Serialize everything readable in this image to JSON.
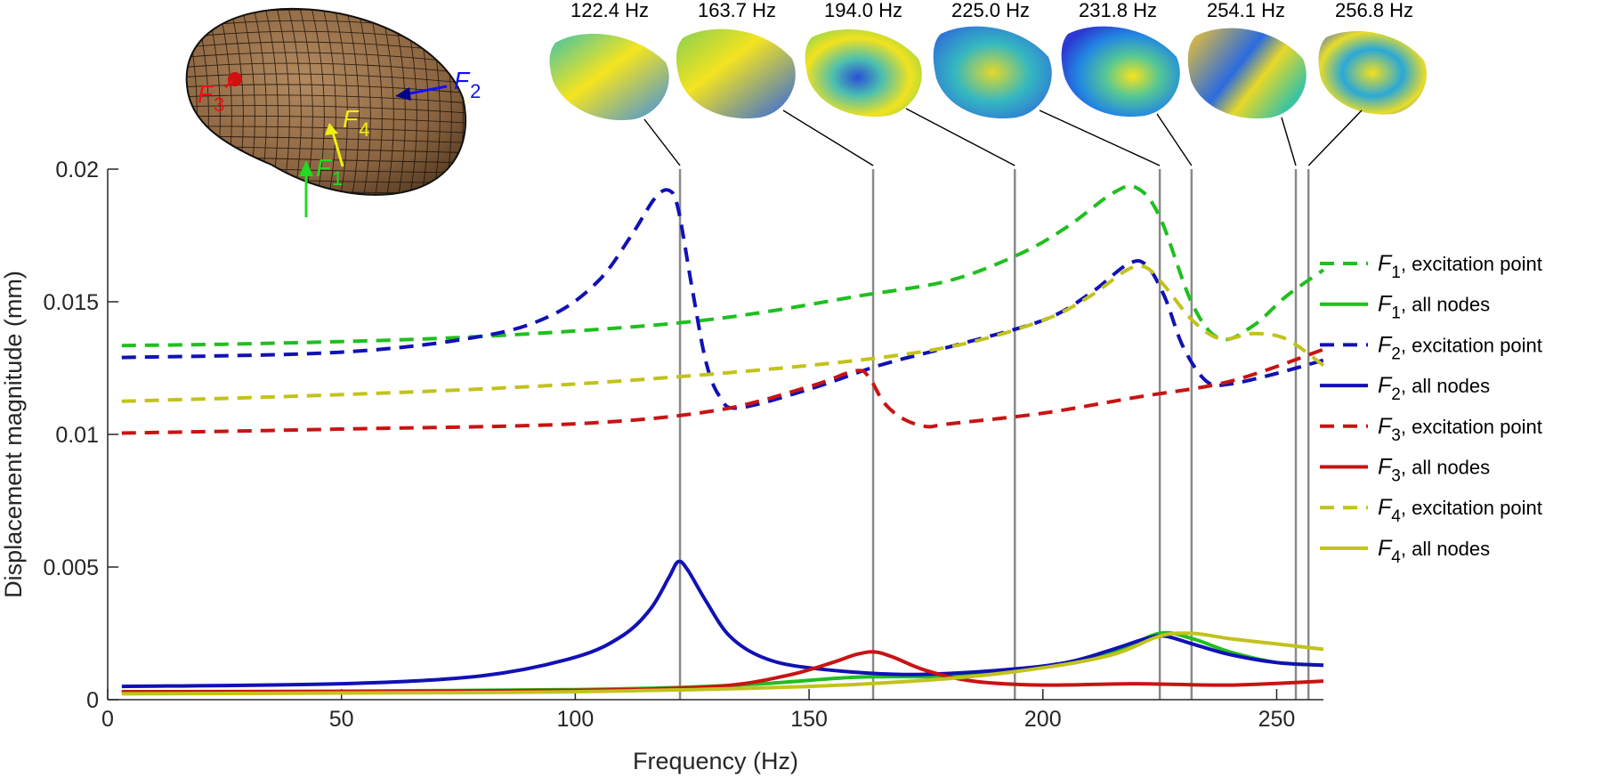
{
  "chart_data": {
    "type": "line",
    "xlabel": "Frequency (Hz)",
    "ylabel": "Displacement magnitude (mm)",
    "xlim": [
      0,
      260
    ],
    "ylim": [
      0,
      0.02
    ],
    "xticks": [
      "0",
      "50",
      "100",
      "150",
      "200",
      "250"
    ],
    "xtick_values": [
      0,
      50,
      100,
      150,
      200,
      250
    ],
    "yticks": [
      "0",
      "0.005",
      "0.01",
      "0.015",
      "0.02"
    ],
    "ytick_values": [
      0,
      0.005,
      0.01,
      0.015,
      0.02
    ],
    "legend_position": "right",
    "modes": [
      {
        "freq": 122.4,
        "label": "122.4 Hz"
      },
      {
        "freq": 163.7,
        "label": "163.7 Hz"
      },
      {
        "freq": 194.0,
        "label": "194.0 Hz"
      },
      {
        "freq": 225.0,
        "label": "225.0 Hz"
      },
      {
        "freq": 231.8,
        "label": "231.8 Hz"
      },
      {
        "freq": 254.1,
        "label": "254.1 Hz"
      },
      {
        "freq": 256.8,
        "label": "256.8 Hz"
      }
    ],
    "series": [
      {
        "id": "f1-exc",
        "force": "F",
        "sub": "1",
        "desc": ", excitation point",
        "color": "#1fbf1f",
        "dashed": true,
        "x": [
          3,
          25,
          50,
          75,
          100,
          122,
          140,
          160,
          180,
          195,
          205,
          215,
          220,
          225,
          232,
          238,
          245,
          252,
          260
        ],
        "y": [
          0.01335,
          0.0134,
          0.0135,
          0.01365,
          0.0139,
          0.0142,
          0.0146,
          0.0152,
          0.0158,
          0.0168,
          0.0178,
          0.0191,
          0.0193,
          0.0182,
          0.0149,
          0.0136,
          0.0141,
          0.0152,
          0.0162
        ]
      },
      {
        "id": "f1-all",
        "force": "F",
        "sub": "1",
        "desc": ", all nodes",
        "color": "#1fbf1f",
        "dashed": false,
        "x": [
          3,
          50,
          100,
          120,
          140,
          160,
          180,
          200,
          215,
          225,
          232,
          240,
          250,
          260
        ],
        "y": [
          0.0003,
          0.00032,
          0.00038,
          0.00045,
          0.0006,
          0.00085,
          0.0009,
          0.00125,
          0.0018,
          0.0025,
          0.0023,
          0.0018,
          0.0014,
          0.0013
        ]
      },
      {
        "id": "f2-exc",
        "force": "F",
        "sub": "2",
        "desc": ", excitation point",
        "color": "#1111b5",
        "dashed": true,
        "x": [
          3,
          50,
          80,
          95,
          105,
          112,
          117,
          120,
          122,
          125,
          128,
          131,
          135,
          150,
          165,
          180,
          200,
          210,
          218,
          222,
          226,
          230,
          235,
          240,
          250,
          260
        ],
        "y": [
          0.0129,
          0.0131,
          0.0137,
          0.0145,
          0.0158,
          0.0175,
          0.0189,
          0.0192,
          0.0185,
          0.0155,
          0.0127,
          0.0114,
          0.011,
          0.0117,
          0.0126,
          0.0133,
          0.0143,
          0.0153,
          0.0164,
          0.0164,
          0.0152,
          0.0133,
          0.012,
          0.0119,
          0.0123,
          0.0128
        ]
      },
      {
        "id": "f2-all",
        "force": "F",
        "sub": "2",
        "desc": ", all nodes",
        "color": "#1111b5",
        "dashed": false,
        "x": [
          3,
          50,
          80,
          100,
          110,
          116,
          120,
          122,
          124,
          128,
          133,
          140,
          150,
          170,
          190,
          205,
          215,
          222,
          226,
          232,
          240,
          250,
          260
        ],
        "y": [
          0.0005,
          0.0006,
          0.0009,
          0.0016,
          0.0024,
          0.0034,
          0.0046,
          0.0052,
          0.0049,
          0.0037,
          0.0024,
          0.0016,
          0.0012,
          0.00095,
          0.0011,
          0.0014,
          0.0019,
          0.0023,
          0.0024,
          0.0021,
          0.0017,
          0.0014,
          0.0013
        ]
      },
      {
        "id": "f3-exc",
        "force": "F",
        "sub": "3",
        "desc": ", excitation point",
        "color": "#c81414",
        "dashed": true,
        "x": [
          3,
          50,
          100,
          130,
          150,
          160,
          163,
          166,
          170,
          175,
          180,
          200,
          220,
          240,
          260
        ],
        "y": [
          0.01005,
          0.0102,
          0.0104,
          0.0109,
          0.0118,
          0.0124,
          0.0121,
          0.0112,
          0.0106,
          0.0103,
          0.0104,
          0.0108,
          0.0114,
          0.012,
          0.0132
        ]
      },
      {
        "id": "f3-all",
        "force": "F",
        "sub": "3",
        "desc": ", all nodes",
        "color": "#c81414",
        "dashed": false,
        "x": [
          3,
          50,
          100,
          130,
          145,
          155,
          160,
          164,
          168,
          175,
          185,
          200,
          220,
          240,
          260
        ],
        "y": [
          0.0003,
          0.00031,
          0.00035,
          0.0005,
          0.0009,
          0.0014,
          0.0017,
          0.0018,
          0.0016,
          0.0011,
          0.0007,
          0.00055,
          0.0006,
          0.00055,
          0.0007
        ]
      },
      {
        "id": "f4-exc",
        "force": "F",
        "sub": "4",
        "desc": ", excitation point",
        "color": "#c2c21c",
        "dashed": true,
        "x": [
          3,
          50,
          100,
          150,
          180,
          200,
          210,
          218,
          222,
          226,
          232,
          238,
          245,
          252,
          260
        ],
        "y": [
          0.01125,
          0.0115,
          0.0119,
          0.0126,
          0.0133,
          0.0143,
          0.0152,
          0.0162,
          0.0163,
          0.0156,
          0.0143,
          0.0136,
          0.0138,
          0.0136,
          0.0126
        ]
      },
      {
        "id": "f4-all",
        "force": "F",
        "sub": "4",
        "desc": ", all nodes",
        "color": "#c2c21c",
        "dashed": false,
        "x": [
          3,
          50,
          100,
          150,
          180,
          200,
          215,
          225,
          232,
          240,
          250,
          260
        ],
        "y": [
          0.00022,
          0.00025,
          0.0003,
          0.0005,
          0.0008,
          0.0012,
          0.0017,
          0.0024,
          0.0025,
          0.0023,
          0.0021,
          0.0019
        ]
      }
    ]
  },
  "inset": {
    "arrow_labels": [
      {
        "name": "F",
        "sub": "1",
        "color": "#1fdc1f"
      },
      {
        "name": "F",
        "sub": "2",
        "color": "#1010ff"
      },
      {
        "name": "F",
        "sub": "3",
        "color": "#ee1010"
      },
      {
        "name": "F",
        "sub": "4",
        "color": "#f0f010"
      }
    ],
    "mesh_color": "#9c7550"
  }
}
